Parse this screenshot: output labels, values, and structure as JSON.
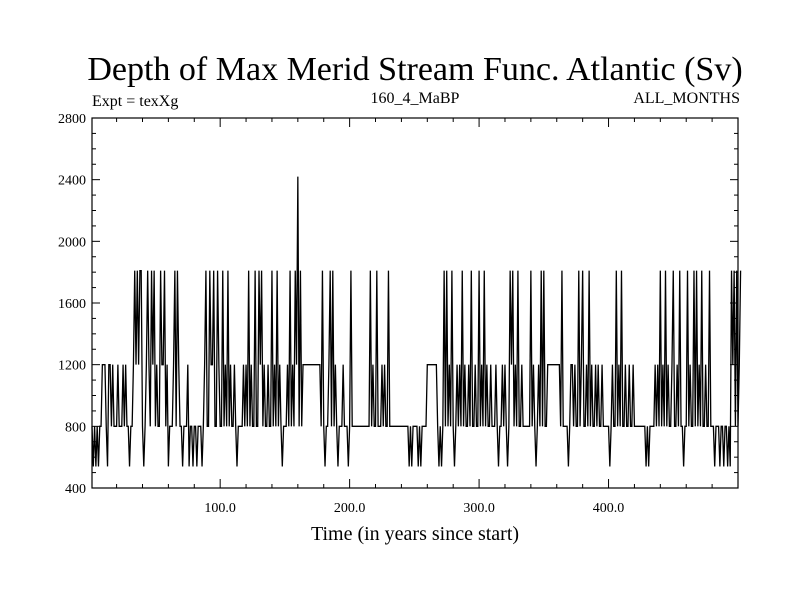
{
  "chart_data": {
    "type": "line",
    "title": "Depth of Max Merid Stream Func. Atlantic (Sv)",
    "subtitle_left": "Expt = texXg",
    "subtitle_center": "160_4_MaBP",
    "subtitle_right": "ALL_MONTHS",
    "xlabel": "Time (in years since start)",
    "ylabel": "",
    "xlim": [
      1,
      500
    ],
    "ylim": [
      400,
      2800
    ],
    "x_ticks": [
      100,
      200,
      300,
      400
    ],
    "x_tick_labels": [
      "100.0",
      "200.0",
      "300.0",
      "400.0"
    ],
    "y_ticks": [
      400,
      800,
      1200,
      1600,
      2000,
      2400,
      2800
    ],
    "y_tick_labels": [
      "400",
      "800",
      "1200",
      "1600",
      "2000",
      "2400",
      "2800"
    ],
    "grid": false,
    "levels": [
      540,
      800,
      1200,
      1810,
      2420
    ],
    "series": [
      {
        "name": "",
        "x_start": 1,
        "x_step": 1,
        "values": [
          800,
          540,
          800,
          540,
          800,
          540,
          800,
          800,
          1200,
          1200,
          1200,
          800,
          540,
          1200,
          1200,
          800,
          1200,
          800,
          800,
          800,
          1200,
          800,
          800,
          800,
          1200,
          800,
          1200,
          800,
          800,
          540,
          800,
          800,
          1200,
          1810,
          1200,
          1810,
          1200,
          1810,
          1810,
          800,
          540,
          800,
          1200,
          1810,
          1200,
          800,
          1810,
          1200,
          1810,
          800,
          1200,
          800,
          800,
          1810,
          1200,
          1200,
          1810,
          800,
          1200,
          540,
          800,
          800,
          800,
          1200,
          1810,
          800,
          1810,
          1200,
          800,
          800,
          540,
          800,
          800,
          800,
          1200,
          540,
          800,
          800,
          540,
          800,
          800,
          540,
          800,
          800,
          800,
          540,
          800,
          1200,
          1810,
          800,
          800,
          1810,
          1200,
          1200,
          1810,
          800,
          800,
          1810,
          1200,
          800,
          800,
          1810,
          800,
          1200,
          800,
          1810,
          800,
          1200,
          800,
          800,
          1200,
          800,
          540,
          800,
          800,
          800,
          800,
          1200,
          800,
          1200,
          800,
          1810,
          800,
          1200,
          800,
          800,
          1810,
          800,
          800,
          1810,
          1200,
          1810,
          800,
          1200,
          800,
          800,
          1200,
          800,
          800,
          1810,
          800,
          1200,
          800,
          1810,
          800,
          1200,
          800,
          540,
          800,
          800,
          800,
          1200,
          800,
          1810,
          800,
          1200,
          800,
          1810,
          1200,
          2420,
          800,
          1810,
          800,
          1200,
          1200,
          1200,
          1200,
          1200,
          1200,
          1200,
          1200,
          1200,
          1200,
          1200,
          1200,
          1200,
          1200,
          800,
          1810,
          800,
          540,
          800,
          800,
          1200,
          1810,
          800,
          1810,
          800,
          1200,
          800,
          540,
          800,
          800,
          800,
          1200,
          800,
          800,
          800,
          540,
          800,
          1810,
          800,
          800,
          800,
          800,
          800,
          800,
          800,
          800,
          800,
          800,
          800,
          800,
          800,
          800,
          1810,
          800,
          1200,
          800,
          800,
          1810,
          800,
          800,
          800,
          1200,
          800,
          1200,
          800,
          800,
          1810,
          800,
          800,
          800,
          800,
          800,
          800,
          800,
          800,
          800,
          800,
          800,
          800,
          800,
          800,
          800,
          540,
          800,
          540,
          800,
          800,
          800,
          800,
          540,
          800,
          540,
          800,
          800,
          800,
          800,
          1200,
          1200,
          1200,
          1200,
          1200,
          1200,
          1200,
          1200,
          800,
          540,
          800,
          540,
          800,
          1810,
          800,
          1810,
          800,
          1200,
          800,
          1810,
          800,
          540,
          800,
          1200,
          800,
          1200,
          800,
          1810,
          800,
          1200,
          800,
          800,
          1200,
          800,
          1810,
          800,
          800,
          1200,
          800,
          800,
          1810,
          800,
          1200,
          800,
          1810,
          800,
          1200,
          800,
          800,
          1200,
          800,
          800,
          800,
          1200,
          800,
          540,
          800,
          800,
          1200,
          800,
          1200,
          800,
          540,
          800,
          1810,
          1200,
          1810,
          800,
          1200,
          800,
          1810,
          800,
          800,
          1200,
          800,
          800,
          800,
          800,
          800,
          800,
          1810,
          800,
          1200,
          800,
          540,
          800,
          1200,
          800,
          1810,
          800,
          1810,
          800,
          800,
          1200,
          1200,
          1200,
          1200,
          1200,
          1200,
          1200,
          1200,
          1200,
          1200,
          800,
          1810,
          800,
          800,
          800,
          800,
          540,
          800,
          1200,
          1200,
          800,
          1200,
          800,
          800,
          1810,
          800,
          1200,
          1810,
          800,
          800,
          1200,
          800,
          1810,
          800,
          1200,
          800,
          800,
          1200,
          800,
          1200,
          800,
          800,
          1200,
          800,
          800,
          800,
          800,
          800,
          540,
          800,
          1200,
          800,
          800,
          1810,
          800,
          1200,
          800,
          1810,
          800,
          800,
          1200,
          800,
          800,
          1200,
          800,
          800,
          1200,
          800,
          800,
          800,
          800,
          800,
          800,
          800,
          800,
          800,
          540,
          800,
          540,
          800,
          800,
          800,
          800,
          1200,
          800,
          1200,
          800,
          1810,
          800,
          1200,
          800,
          1810,
          800,
          1200,
          800,
          800,
          1200,
          1810,
          800,
          800,
          1200,
          800,
          1810,
          800,
          800,
          540,
          800,
          800,
          1810,
          800,
          1200,
          800,
          800,
          1810,
          800,
          1810,
          800,
          1200,
          800,
          1810,
          800,
          800,
          1200,
          800,
          800,
          1810,
          800,
          800,
          800,
          540,
          800,
          800,
          800,
          540,
          800,
          800,
          540,
          800,
          800,
          540,
          800,
          540,
          1810,
          1200,
          1810,
          800,
          1810,
          800,
          1200,
          1810
        ]
      }
    ]
  }
}
